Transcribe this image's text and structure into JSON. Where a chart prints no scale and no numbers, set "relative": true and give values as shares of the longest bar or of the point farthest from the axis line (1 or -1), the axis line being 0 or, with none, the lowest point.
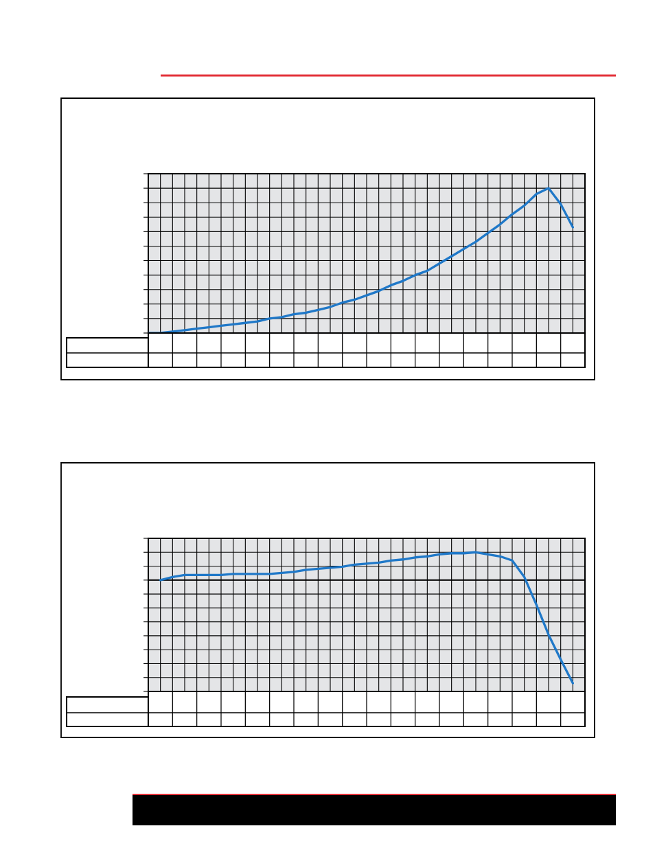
{
  "chart_data": [
    {
      "type": "line",
      "relative": true,
      "grid": true,
      "color": "#1f78c8",
      "categories": [
        null,
        null,
        null,
        null,
        null,
        null,
        null,
        null,
        null,
        null,
        null,
        null,
        null,
        null,
        null,
        null,
        null,
        null,
        null,
        null,
        null,
        null,
        null,
        null,
        null,
        null,
        null,
        null,
        null,
        null,
        null,
        null,
        null,
        null,
        null,
        null,
        null
      ],
      "values": [
        0,
        0,
        0.01,
        0.02,
        0.03,
        0.04,
        0.05,
        0.06,
        0.07,
        0.08,
        0.1,
        0.11,
        0.13,
        0.14,
        0.16,
        0.18,
        0.21,
        0.23,
        0.26,
        0.29,
        0.33,
        0.36,
        0.4,
        0.43,
        0.48,
        0.53,
        0.58,
        0.63,
        0.69,
        0.75,
        0.82,
        0.88,
        0.96,
        1,
        0.89,
        0.73,
        null
      ]
    },
    {
      "type": "line",
      "relative": true,
      "grid": true,
      "color": "#1f78c8",
      "categories": [
        null,
        null,
        null,
        null,
        null,
        null,
        null,
        null,
        null,
        null,
        null,
        null,
        null,
        null,
        null,
        null,
        null,
        null,
        null,
        null,
        null,
        null,
        null,
        null,
        null,
        null,
        null,
        null,
        null,
        null,
        null,
        null,
        null,
        null,
        null,
        null,
        null
      ],
      "values": [
        null,
        0,
        0.03,
        0.05,
        0.05,
        0.05,
        0.05,
        0.06,
        0.06,
        0.06,
        0.06,
        0.07,
        0.08,
        0.1,
        0.11,
        0.12,
        0.13,
        0.15,
        0.16,
        0.17,
        0.19,
        0.2,
        0.22,
        0.23,
        0.25,
        0.26,
        0.26,
        0.27,
        0.25,
        0.23,
        0.19,
        0.03,
        -0.24,
        -0.53,
        -0.77,
        -1,
        null
      ]
    }
  ]
}
